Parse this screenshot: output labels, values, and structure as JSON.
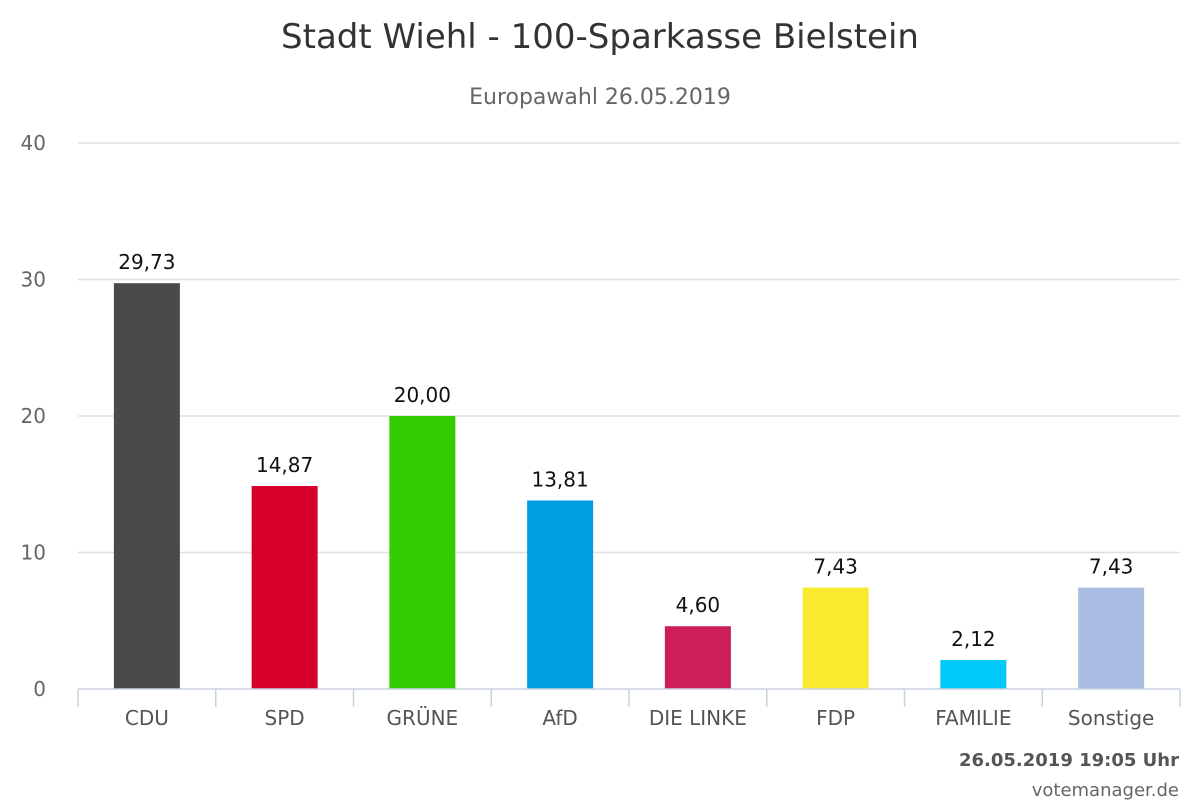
{
  "chart_data": {
    "type": "bar",
    "title": "Stadt Wiehl - 100-Sparkasse Bielstein",
    "subtitle": "Europawahl 26.05.2019",
    "xlabel": "",
    "ylabel": "",
    "categories": [
      "CDU",
      "SPD",
      "GRÜNE",
      "AfD",
      "DIE LINKE",
      "FDP",
      "FAMILIE",
      "Sonstige"
    ],
    "values": [
      29.73,
      14.87,
      20.0,
      13.81,
      4.6,
      7.43,
      2.12,
      7.43
    ],
    "value_labels": [
      "29,73",
      "14,87",
      "20,00",
      "13,81",
      "4,60",
      "7,43",
      "2,12",
      "7,43"
    ],
    "colors": [
      "#4a4a4a",
      "#d7002c",
      "#33cc00",
      "#009ee0",
      "#cc1f5a",
      "#f9ea2d",
      "#00c8f8",
      "#aabde3"
    ],
    "ylim": [
      0,
      40
    ],
    "yticks": [
      0,
      10,
      20,
      30,
      40
    ],
    "grid": true,
    "legend": "none"
  },
  "footer": {
    "timestamp": "26.05.2019 19:05 Uhr",
    "credit": "votemanager.de"
  }
}
